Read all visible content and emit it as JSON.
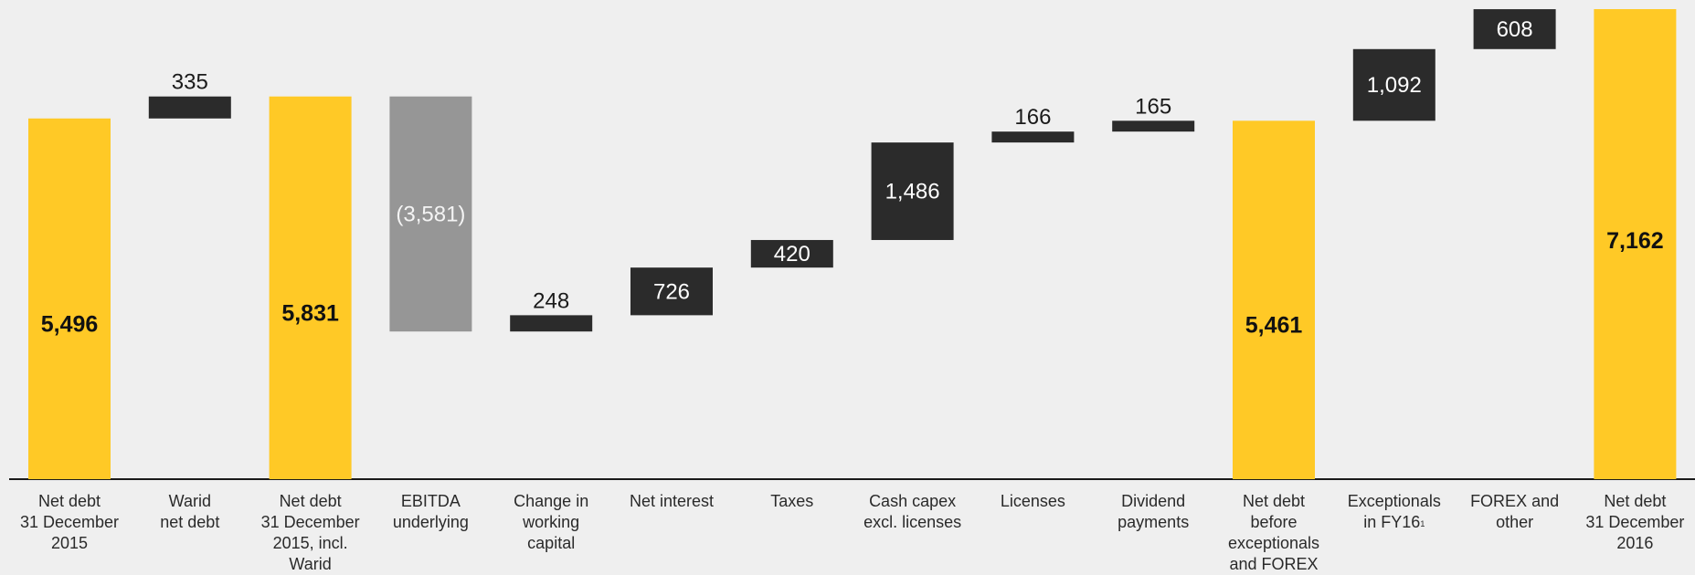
{
  "chart_data": {
    "type": "waterfall",
    "title": "",
    "xlabel": "",
    "ylabel": "",
    "ylim": [
      0,
      7162
    ],
    "grid": false,
    "legend": "none",
    "colors": {
      "total": "#ffc926",
      "increase": "#2b2b2b",
      "decrease": "#969696",
      "total_label": "#111111",
      "step_label": "#ffffff",
      "outside_label": "#1a1a1a",
      "axis": "#1a1a1a",
      "background": "#efefef"
    },
    "steps": [
      {
        "category": "Net debt\n31 December\n2015",
        "kind": "total",
        "value": 5496,
        "label": "5,496"
      },
      {
        "category": "Warid\nnet debt",
        "kind": "increase",
        "value": 335,
        "label": "335"
      },
      {
        "category": "Net debt\n31 December\n2015, incl.\nWarid",
        "kind": "total",
        "value": 5831,
        "label": "5,831"
      },
      {
        "category": "EBITDA\nunderlying",
        "kind": "decrease",
        "value": -3581,
        "label": "(3,581)"
      },
      {
        "category": "Change in\nworking\ncapital",
        "kind": "increase",
        "value": 248,
        "label": "248"
      },
      {
        "category": "Net interest",
        "kind": "increase",
        "value": 726,
        "label": "726"
      },
      {
        "category": "Taxes",
        "kind": "increase",
        "value": 420,
        "label": "420"
      },
      {
        "category": "Cash capex\nexcl. licenses",
        "kind": "increase",
        "value": 1486,
        "label": "1,486"
      },
      {
        "category": "Licenses",
        "kind": "increase",
        "value": 166,
        "label": "166"
      },
      {
        "category": "Dividend\npayments",
        "kind": "increase",
        "value": 165,
        "label": "165"
      },
      {
        "category": "Net debt\nbefore\nexceptionals\nand FOREX",
        "kind": "total",
        "value": 5461,
        "label": "5,461"
      },
      {
        "category": "Exceptionals\nin FY16",
        "footnote": "1",
        "kind": "increase",
        "value": 1092,
        "label": "1,092"
      },
      {
        "category": "FOREX and\nother",
        "kind": "increase",
        "value": 608,
        "label": "608"
      },
      {
        "category": "Net debt\n31 December\n2016",
        "kind": "total",
        "value": 7162,
        "label": "7,162"
      }
    ]
  }
}
